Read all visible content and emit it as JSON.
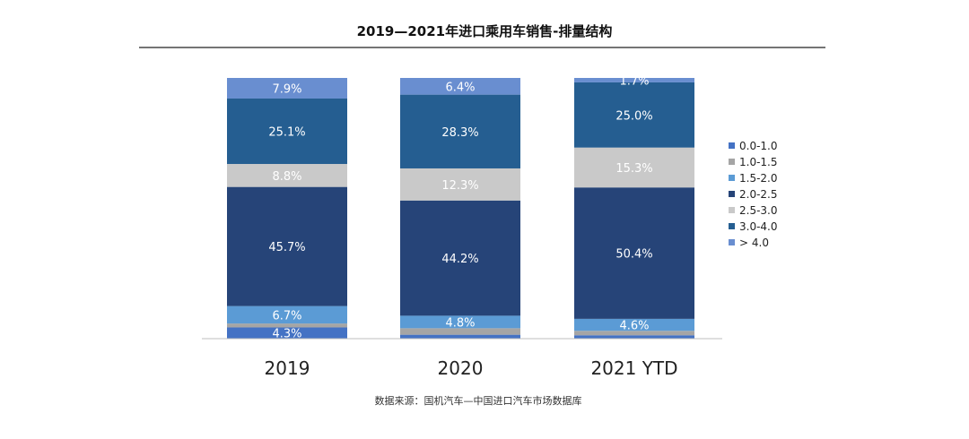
{
  "chart_data": {
    "type": "bar",
    "stacked": true,
    "normalized": true,
    "title": "2019—2021年进口乘用车销售-排量结构",
    "categories": [
      "2019",
      "2020",
      "2021 YTD"
    ],
    "series": [
      {
        "name": "0.0-1.0",
        "color": "#4472c4",
        "values": [
          4.3,
          1.5,
          1.3
        ],
        "labels": [
          "4.3%",
          "",
          ""
        ]
      },
      {
        "name": "1.0-1.5",
        "color": "#a5a5a5",
        "values": [
          1.5,
          2.5,
          1.7
        ],
        "labels": [
          "",
          "",
          ""
        ]
      },
      {
        "name": "1.5-2.0",
        "color": "#5b9bd5",
        "values": [
          6.7,
          4.8,
          4.6
        ],
        "labels": [
          "6.7%",
          "4.8%",
          "4.6%"
        ]
      },
      {
        "name": "2.0-2.5",
        "color": "#264478",
        "values": [
          45.7,
          44.2,
          50.4
        ],
        "labels": [
          "45.7%",
          "44.2%",
          "50.4%"
        ]
      },
      {
        "name": "2.5-3.0",
        "color": "#c9c9c9",
        "values": [
          8.8,
          12.3,
          15.3
        ],
        "labels": [
          "8.8%",
          "12.3%",
          "15.3%"
        ]
      },
      {
        "name": "3.0-4.0",
        "color": "#255e91",
        "values": [
          25.1,
          28.3,
          25.0
        ],
        "labels": [
          "25.1%",
          "28.3%",
          "25.0%"
        ]
      },
      {
        "name": "> 4.0",
        "color": "#698ed0",
        "values": [
          7.9,
          6.4,
          1.7
        ],
        "labels": [
          "7.9%",
          "6.4%",
          "1.7%"
        ]
      }
    ],
    "legend_position": "right",
    "grid": false
  },
  "source": "数据来源：国机汽车—中国进口汽车市场数据库"
}
